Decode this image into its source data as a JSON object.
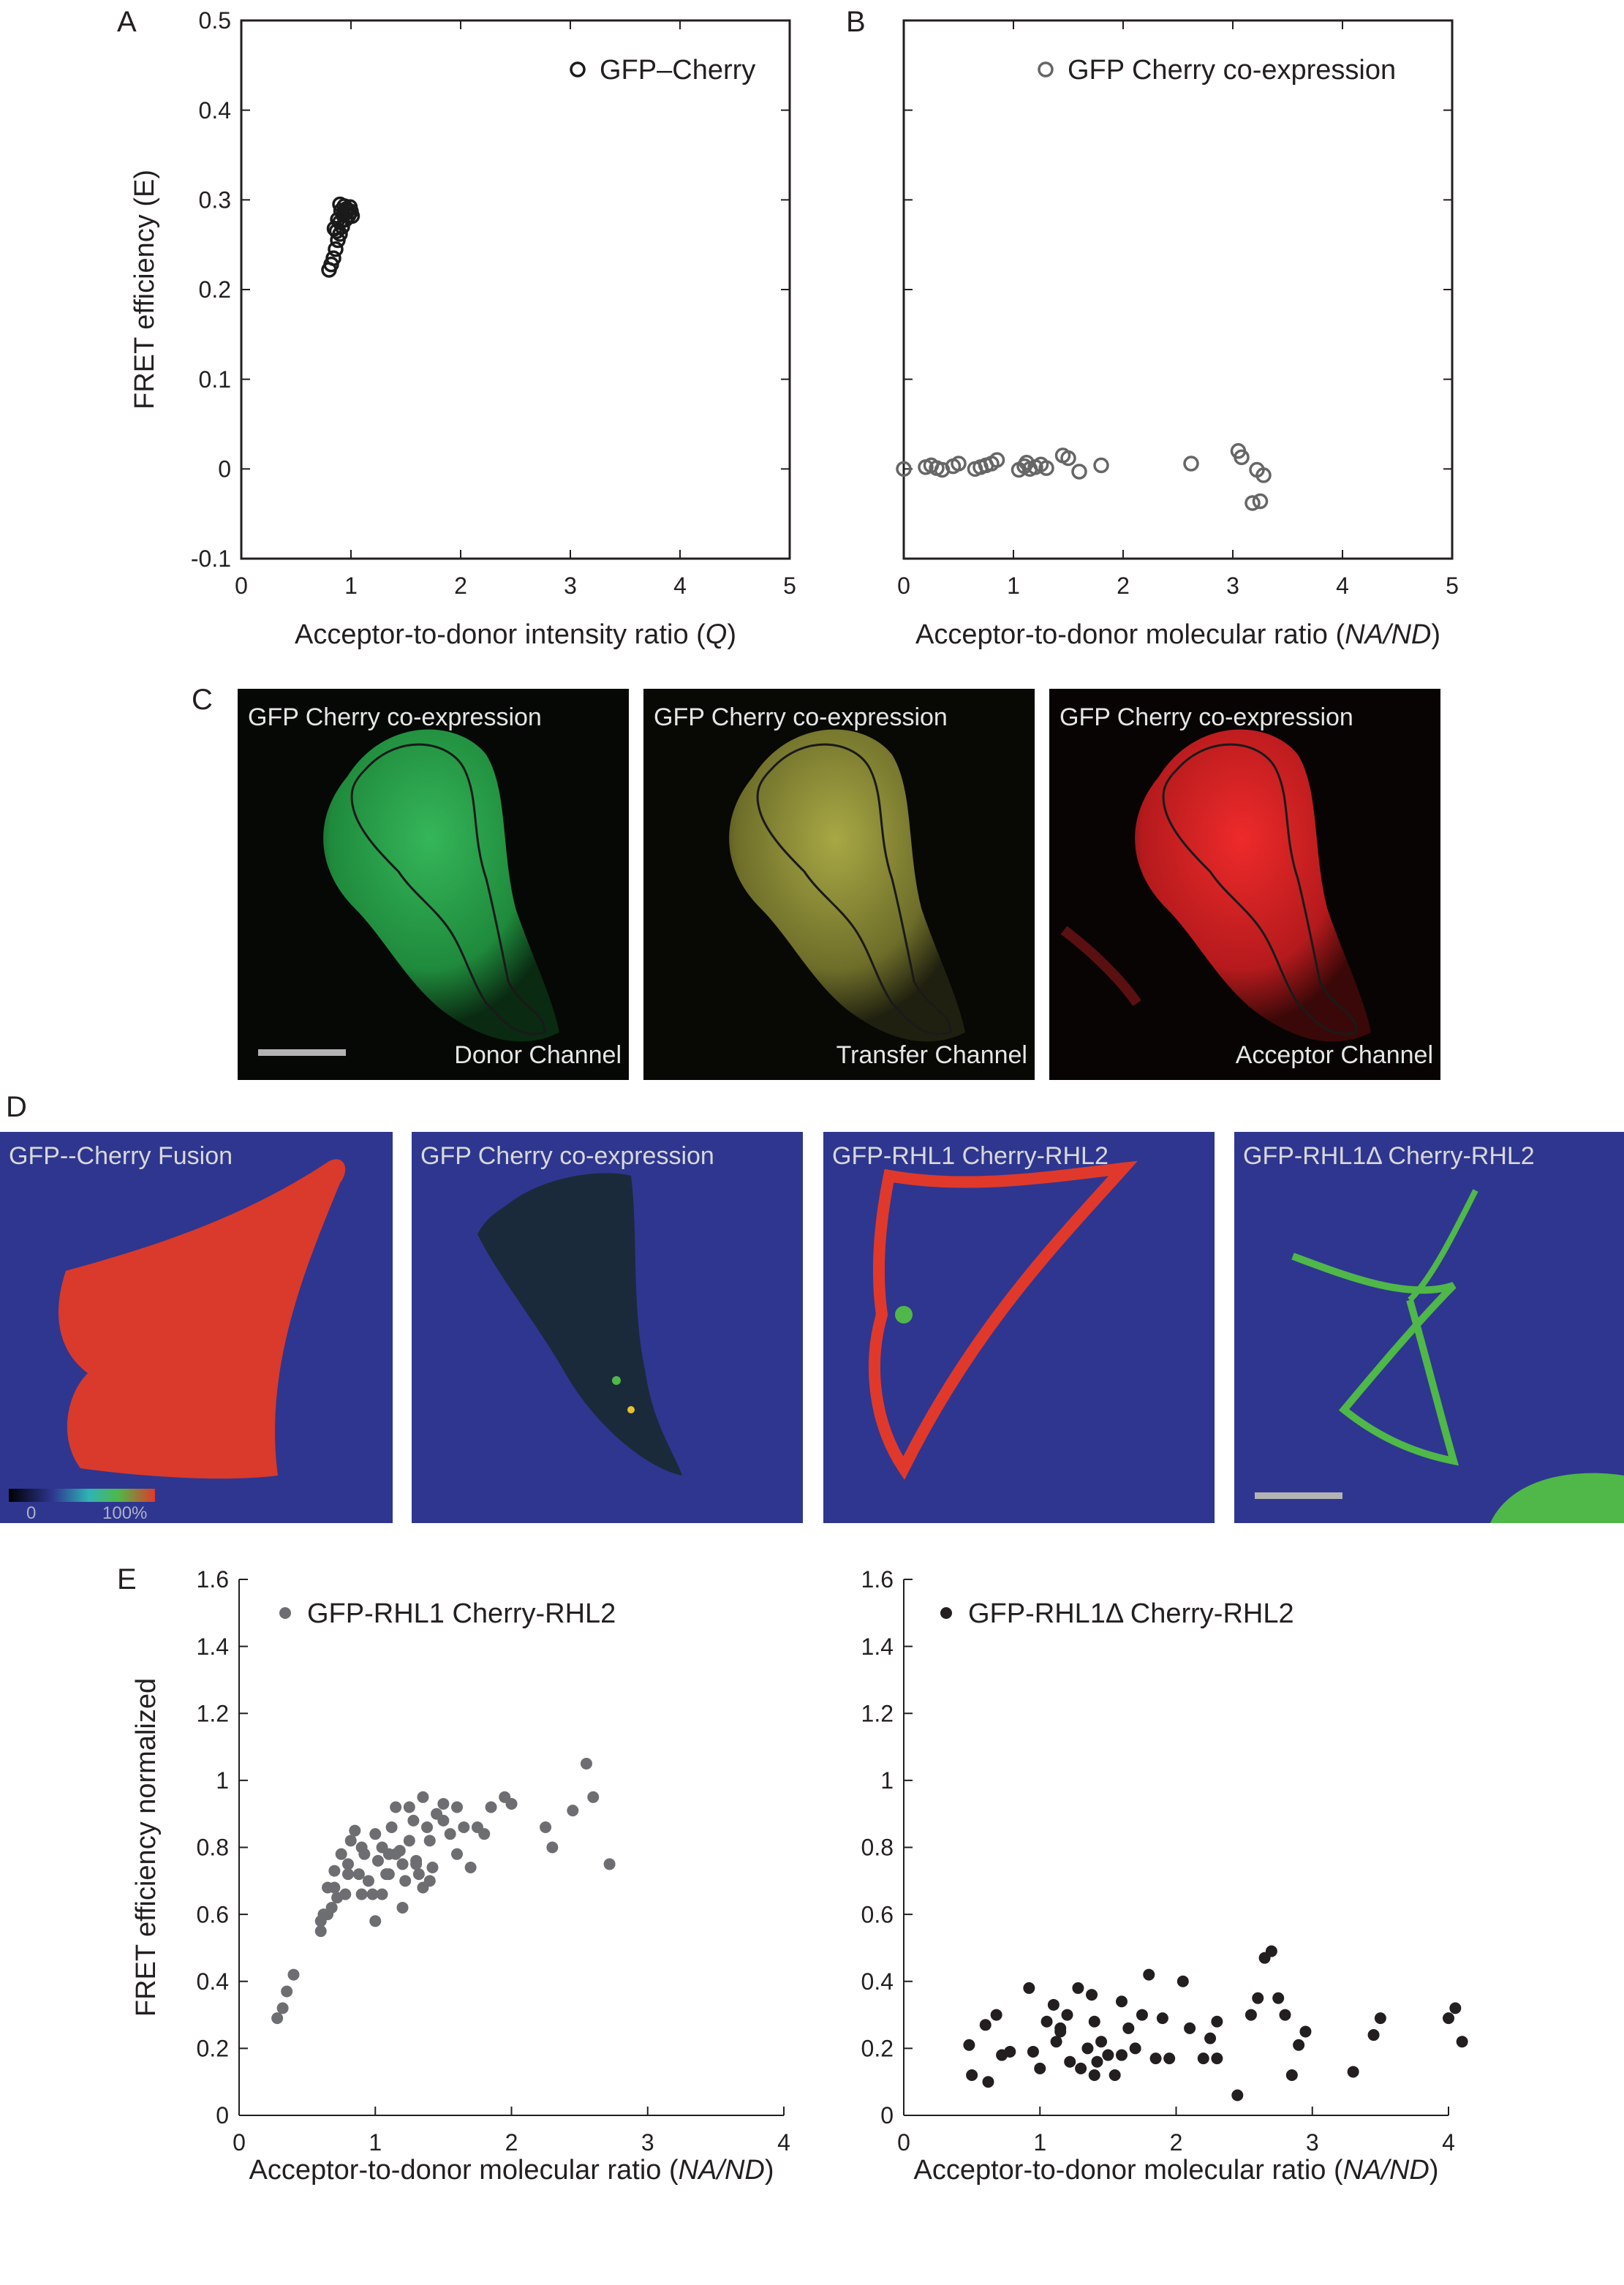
{
  "panels": {
    "A": "A",
    "B": "B",
    "C": "C",
    "D": "D",
    "E": "E"
  },
  "chart_data": [
    {
      "id": "A",
      "type": "scatter",
      "title": "",
      "xlabel": "Acceptor-to-donor intensity ratio (",
      "xlabel_var": "Q",
      "xlabel_end": ")",
      "ylabel": "FRET efficiency (E)",
      "xlim": [
        0,
        5
      ],
      "ylim": [
        -0.1,
        0.5
      ],
      "xticks": [
        "0",
        "1",
        "2",
        "3",
        "4",
        "5"
      ],
      "yticks": [
        "-0.1",
        "0",
        "0.1",
        "0.2",
        "0.3",
        "0.4",
        "0.5"
      ],
      "legend": "GFP–Cherry",
      "marker": "open-circle",
      "color": "#1a1a1a",
      "series": [
        {
          "name": "GFP–Cherry",
          "x": [
            0.8,
            0.82,
            0.84,
            0.86,
            0.88,
            0.9,
            0.92,
            0.95,
            0.98,
            1.0,
            0.87,
            0.9,
            0.93,
            0.96,
            0.99,
            0.85,
            0.88,
            0.91,
            0.94,
            0.97,
            1.01,
            0.9,
            0.95
          ],
          "y": [
            0.222,
            0.228,
            0.235,
            0.245,
            0.255,
            0.262,
            0.27,
            0.278,
            0.283,
            0.287,
            0.265,
            0.275,
            0.283,
            0.29,
            0.292,
            0.268,
            0.278,
            0.288,
            0.293,
            0.288,
            0.282,
            0.295,
            0.285
          ]
        }
      ]
    },
    {
      "id": "B",
      "type": "scatter",
      "title": "",
      "xlabel": "Acceptor-to-donor molecular ratio (",
      "xlabel_var": "NA/ND",
      "xlabel_end": ")",
      "ylabel": "",
      "xlim": [
        0,
        5
      ],
      "ylim": [
        -0.1,
        0.5
      ],
      "xticks": [
        "0",
        "1",
        "2",
        "3",
        "4",
        "5"
      ],
      "yticks": [],
      "legend": "GFP Cherry co-expression",
      "marker": "open-circle",
      "color": "#666666",
      "series": [
        {
          "name": "GFP Cherry co-expression",
          "x": [
            0.0,
            0.2,
            0.25,
            0.3,
            0.35,
            0.45,
            0.5,
            0.65,
            0.7,
            0.75,
            0.8,
            0.85,
            1.05,
            1.1,
            1.12,
            1.15,
            1.2,
            1.25,
            1.3,
            1.45,
            1.5,
            1.6,
            1.8,
            2.62,
            3.05,
            3.08,
            3.18,
            3.25,
            3.28,
            3.22
          ],
          "y": [
            0.0,
            0.002,
            0.004,
            0.001,
            -0.001,
            0.003,
            0.006,
            0.0,
            0.002,
            0.004,
            0.006,
            0.01,
            -0.001,
            0.003,
            0.007,
            0.0,
            0.002,
            0.005,
            0.001,
            0.015,
            0.012,
            -0.003,
            0.004,
            0.006,
            0.02,
            0.013,
            -0.038,
            -0.036,
            -0.007,
            -0.001
          ]
        }
      ]
    },
    {
      "id": "E-left",
      "type": "scatter",
      "title": "",
      "xlabel": "Acceptor-to-donor molecular ratio (",
      "xlabel_var": "NA/ND",
      "xlabel_end": ")",
      "ylabel": "FRET efficiency normalized",
      "xlim": [
        0,
        4
      ],
      "ylim": [
        0,
        1.6
      ],
      "xticks": [
        "0",
        "1",
        "2",
        "3",
        "4"
      ],
      "yticks": [
        "0",
        "0.2",
        "0.4",
        "0.6",
        "0.8",
        "1",
        "1.2",
        "1.4",
        "1.6"
      ],
      "legend": "GFP-RHL1 Cherry-RHL2",
      "marker": "filled-circle",
      "color": "#6d6e71",
      "series": [
        {
          "name": "GFP-RHL1 Cherry-RHL2",
          "x": [
            0.28,
            0.32,
            0.35,
            0.4,
            0.6,
            0.62,
            0.65,
            0.68,
            0.7,
            0.72,
            0.75,
            0.78,
            0.8,
            0.82,
            0.85,
            0.88,
            0.9,
            0.92,
            0.95,
            0.98,
            1.0,
            1.02,
            1.05,
            1.08,
            1.1,
            1.12,
            1.15,
            1.18,
            1.2,
            1.22,
            1.25,
            1.28,
            1.3,
            1.32,
            1.35,
            1.38,
            1.4,
            1.42,
            1.45,
            1.5,
            1.55,
            1.6,
            1.65,
            1.7,
            1.75,
            1.8,
            1.85,
            1.95,
            2.0,
            2.25,
            2.3,
            2.45,
            2.55,
            2.6,
            2.72,
            0.9,
            1.0,
            1.1,
            1.2,
            1.3,
            1.4,
            0.8,
            0.7,
            1.5,
            1.6,
            0.6,
            0.65,
            1.25,
            1.35,
            1.05,
            1.15
          ],
          "y": [
            0.29,
            0.32,
            0.37,
            0.42,
            0.55,
            0.6,
            0.68,
            0.62,
            0.73,
            0.65,
            0.78,
            0.66,
            0.75,
            0.82,
            0.85,
            0.72,
            0.8,
            0.78,
            0.7,
            0.66,
            0.84,
            0.76,
            0.8,
            0.72,
            0.78,
            0.86,
            0.92,
            0.79,
            0.75,
            0.7,
            0.82,
            0.88,
            0.76,
            0.72,
            0.95,
            0.86,
            0.82,
            0.74,
            0.9,
            0.88,
            0.84,
            0.92,
            0.86,
            0.74,
            0.86,
            0.84,
            0.92,
            0.95,
            0.93,
            0.86,
            0.8,
            0.91,
            1.05,
            0.95,
            0.75,
            0.66,
            0.58,
            0.72,
            0.62,
            0.75,
            0.7,
            0.72,
            0.68,
            0.93,
            0.78,
            0.58,
            0.6,
            0.92,
            0.68,
            0.66,
            0.78
          ]
        }
      ]
    },
    {
      "id": "E-right",
      "type": "scatter",
      "title": "",
      "xlabel": "Acceptor-to-donor molecular ratio (",
      "xlabel_var": "NA/ND",
      "xlabel_end": ")",
      "ylabel": "",
      "xlim": [
        0,
        4
      ],
      "ylim": [
        0,
        1.6
      ],
      "xticks": [
        "0",
        "1",
        "2",
        "3",
        "4"
      ],
      "yticks": [
        "0",
        "0.2",
        "0.4",
        "0.6",
        "0.8",
        "1",
        "1.2",
        "1.4",
        "1.6"
      ],
      "legend": "GFP-RHL1Δ  Cherry-RHL2",
      "marker": "filled-circle",
      "color": "#231f20",
      "series": [
        {
          "name": "GFP-RHL1Δ Cherry-RHL2",
          "x": [
            0.48,
            0.5,
            0.6,
            0.62,
            0.68,
            0.72,
            0.78,
            0.92,
            0.95,
            1.0,
            1.05,
            1.1,
            1.12,
            1.15,
            1.2,
            1.22,
            1.28,
            1.3,
            1.35,
            1.38,
            1.4,
            1.42,
            1.45,
            1.5,
            1.55,
            1.6,
            1.65,
            1.7,
            1.75,
            1.8,
            1.85,
            1.9,
            1.95,
            2.05,
            2.1,
            2.2,
            2.25,
            2.3,
            2.45,
            2.55,
            2.6,
            2.65,
            2.7,
            2.75,
            2.8,
            2.9,
            2.95,
            3.3,
            3.45,
            3.5,
            4.0,
            4.05,
            4.1,
            1.15,
            1.4,
            1.6,
            2.3,
            2.85
          ],
          "y": [
            0.21,
            0.12,
            0.27,
            0.1,
            0.3,
            0.18,
            0.19,
            0.38,
            0.19,
            0.14,
            0.28,
            0.33,
            0.22,
            0.26,
            0.3,
            0.16,
            0.38,
            0.14,
            0.2,
            0.36,
            0.12,
            0.16,
            0.22,
            0.18,
            0.12,
            0.34,
            0.26,
            0.2,
            0.3,
            0.42,
            0.17,
            0.29,
            0.17,
            0.4,
            0.26,
            0.17,
            0.23,
            0.17,
            0.06,
            0.3,
            0.35,
            0.47,
            0.49,
            0.35,
            0.3,
            0.21,
            0.25,
            0.13,
            0.24,
            0.29,
            0.29,
            0.32,
            0.22,
            0.25,
            0.28,
            0.18,
            0.28,
            0.12
          ]
        }
      ]
    }
  ],
  "microscopy": [
    {
      "title": "GFP Cherry co-expression",
      "channel": "Donor Channel",
      "fill": "#2fa84a"
    },
    {
      "title": "GFP Cherry co-expression",
      "channel": "Transfer Channel",
      "fill": "#9a9a3a"
    },
    {
      "title": "GFP Cherry co-expression",
      "channel": "Acceptor Channel",
      "fill": "#d61d24"
    }
  ],
  "fret_maps": [
    {
      "title": "GFP--Cherry Fusion",
      "fill": "#d93a2b"
    },
    {
      "title": "GFP Cherry co-expression",
      "fill": "#1a2a3a"
    },
    {
      "title": "GFP-RHL1  Cherry-RHL2",
      "fill": "#e0392b"
    },
    {
      "title": "GFP-RHL1Δ Cherry-RHL2",
      "fill": "#4fb848"
    }
  ],
  "colorbar": {
    "min_label": "0",
    "max_label": "100%"
  },
  "colors": {
    "fret_background": "#2e3690",
    "frame": "#231f20"
  }
}
